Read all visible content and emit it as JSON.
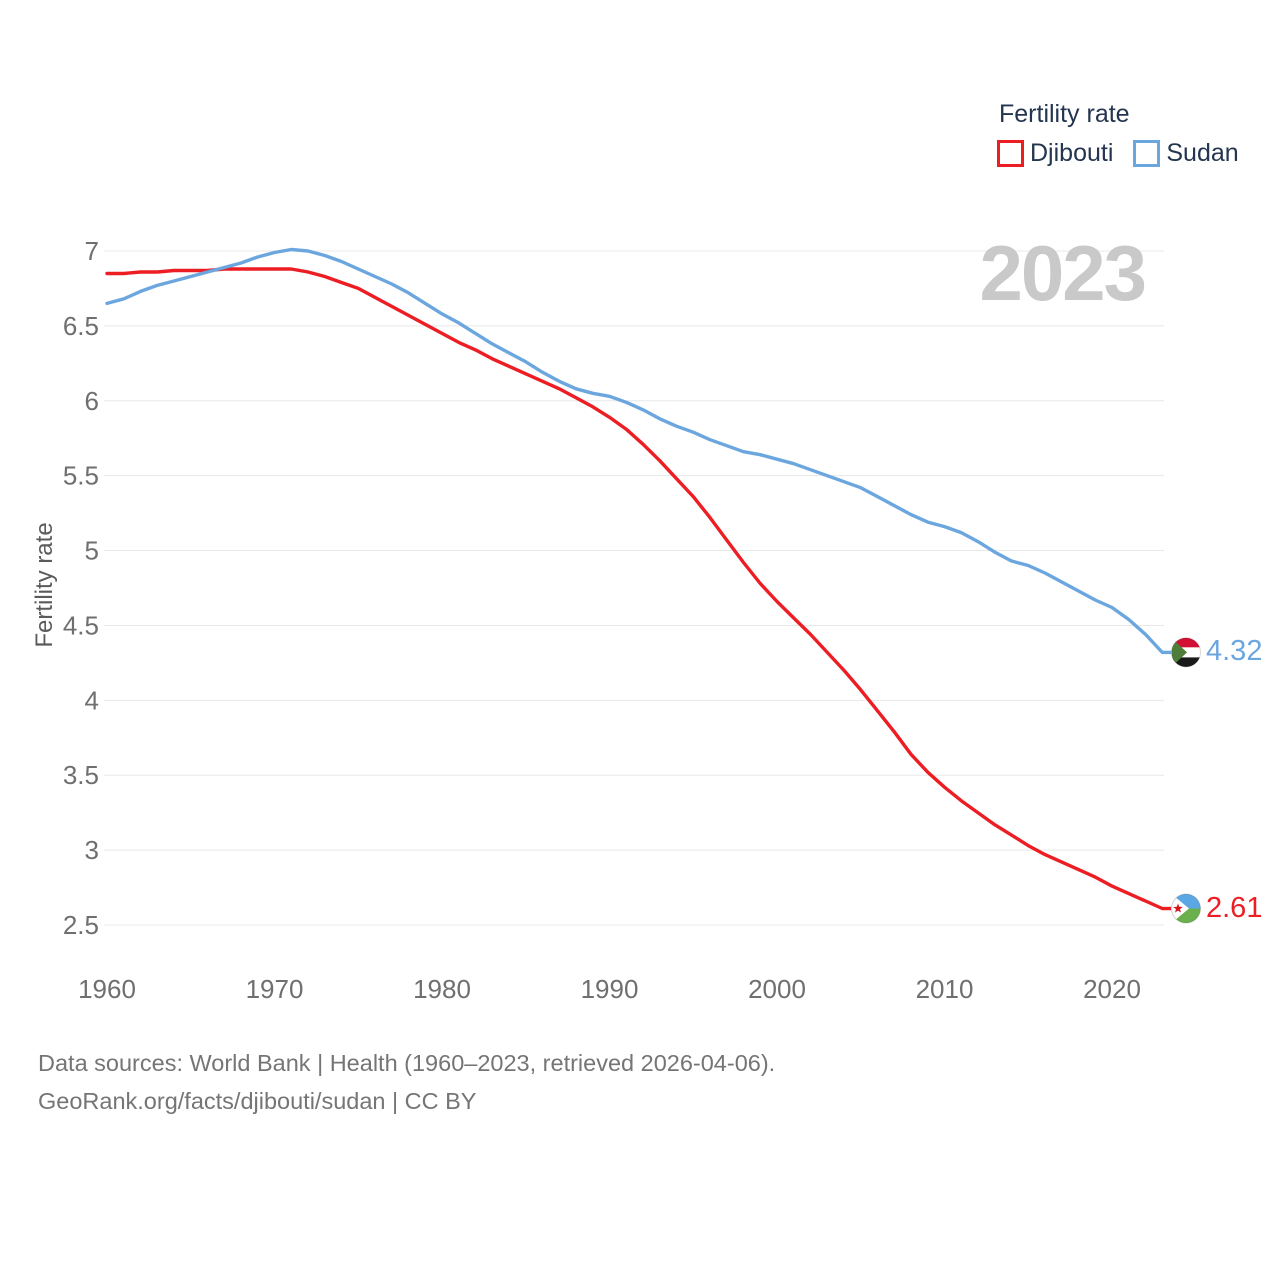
{
  "legend": {
    "title": "Fertility rate",
    "items": [
      {
        "label": "Djibouti",
        "color": "#EC1E24"
      },
      {
        "label": "Sudan",
        "color": "#6CA6DF"
      }
    ]
  },
  "watermark": "2023",
  "y_axis_title": "Fertility rate",
  "end_labels": {
    "djibouti": {
      "value": "2.61",
      "flag": "djibouti-flag"
    },
    "sudan": {
      "value": "4.32",
      "flag": "sudan-flag"
    }
  },
  "footer": {
    "line1": "Data sources: World Bank | Health (1960–2023, retrieved 2026-04-06).",
    "line2": "GeoRank.org/facts/djibouti/sudan | CC BY"
  },
  "colors": {
    "djibouti_line": "#EC1E24",
    "sudan_line": "#6CA6DF",
    "gridline": "#E8E8E8",
    "tick_text": "#6F6F6F",
    "legend_text": "#24354F",
    "watermark": "#C9C9C9",
    "footer_text": "#757575"
  },
  "chart_data": {
    "type": "line",
    "title": "Fertility rate",
    "xlabel": "",
    "ylabel": "Fertility rate",
    "grid": "horizontal",
    "legend_position": "top-right",
    "year_badge": "2023",
    "x_ticks": [
      1960,
      1970,
      1980,
      1990,
      2000,
      2010,
      2020
    ],
    "y_ticks": [
      7,
      6.5,
      6,
      5.5,
      5,
      4.5,
      4,
      3.5,
      3,
      2.5
    ],
    "ylim": [
      2.5,
      7.1
    ],
    "xlim": [
      1960,
      2023
    ],
    "x": [
      1960,
      1961,
      1962,
      1963,
      1964,
      1965,
      1966,
      1967,
      1968,
      1969,
      1970,
      1971,
      1972,
      1973,
      1974,
      1975,
      1976,
      1977,
      1978,
      1979,
      1980,
      1981,
      1982,
      1983,
      1984,
      1985,
      1986,
      1987,
      1988,
      1989,
      1990,
      1991,
      1992,
      1993,
      1994,
      1995,
      1996,
      1997,
      1998,
      1999,
      2000,
      2001,
      2002,
      2003,
      2004,
      2005,
      2006,
      2007,
      2008,
      2009,
      2010,
      2011,
      2012,
      2013,
      2014,
      2015,
      2016,
      2017,
      2018,
      2019,
      2020,
      2021,
      2022,
      2023
    ],
    "series": [
      {
        "name": "Djibouti",
        "color": "#EC1E24",
        "end_label": "2.61",
        "end_year": 2023,
        "values": [
          6.85,
          6.85,
          6.86,
          6.86,
          6.87,
          6.87,
          6.87,
          6.88,
          6.88,
          6.88,
          6.88,
          6.88,
          6.86,
          6.83,
          6.79,
          6.75,
          6.69,
          6.63,
          6.57,
          6.51,
          6.45,
          6.39,
          6.34,
          6.28,
          6.23,
          6.18,
          6.13,
          6.08,
          6.02,
          5.96,
          5.89,
          5.81,
          5.71,
          5.6,
          5.48,
          5.36,
          5.22,
          5.07,
          4.92,
          4.78,
          4.66,
          4.55,
          4.44,
          4.32,
          4.2,
          4.07,
          3.93,
          3.79,
          3.64,
          3.52,
          3.42,
          3.33,
          3.25,
          3.17,
          3.1,
          3.03,
          2.97,
          2.92,
          2.87,
          2.82,
          2.76,
          2.71,
          2.66,
          2.61
        ]
      },
      {
        "name": "Sudan",
        "color": "#6CA6DF",
        "end_label": "4.32",
        "end_year": 2023,
        "values": [
          6.65,
          6.68,
          6.73,
          6.77,
          6.8,
          6.83,
          6.86,
          6.89,
          6.92,
          6.96,
          6.99,
          7.01,
          7.0,
          6.97,
          6.93,
          6.88,
          6.83,
          6.78,
          6.72,
          6.65,
          6.58,
          6.52,
          6.45,
          6.38,
          6.32,
          6.26,
          6.19,
          6.13,
          6.08,
          6.05,
          6.03,
          5.99,
          5.94,
          5.88,
          5.83,
          5.79,
          5.74,
          5.7,
          5.66,
          5.64,
          5.61,
          5.58,
          5.54,
          5.5,
          5.46,
          5.42,
          5.36,
          5.3,
          5.24,
          5.19,
          5.16,
          5.12,
          5.06,
          4.99,
          4.93,
          4.9,
          4.85,
          4.79,
          4.73,
          4.67,
          4.62,
          4.54,
          4.44,
          4.32
        ]
      }
    ]
  }
}
